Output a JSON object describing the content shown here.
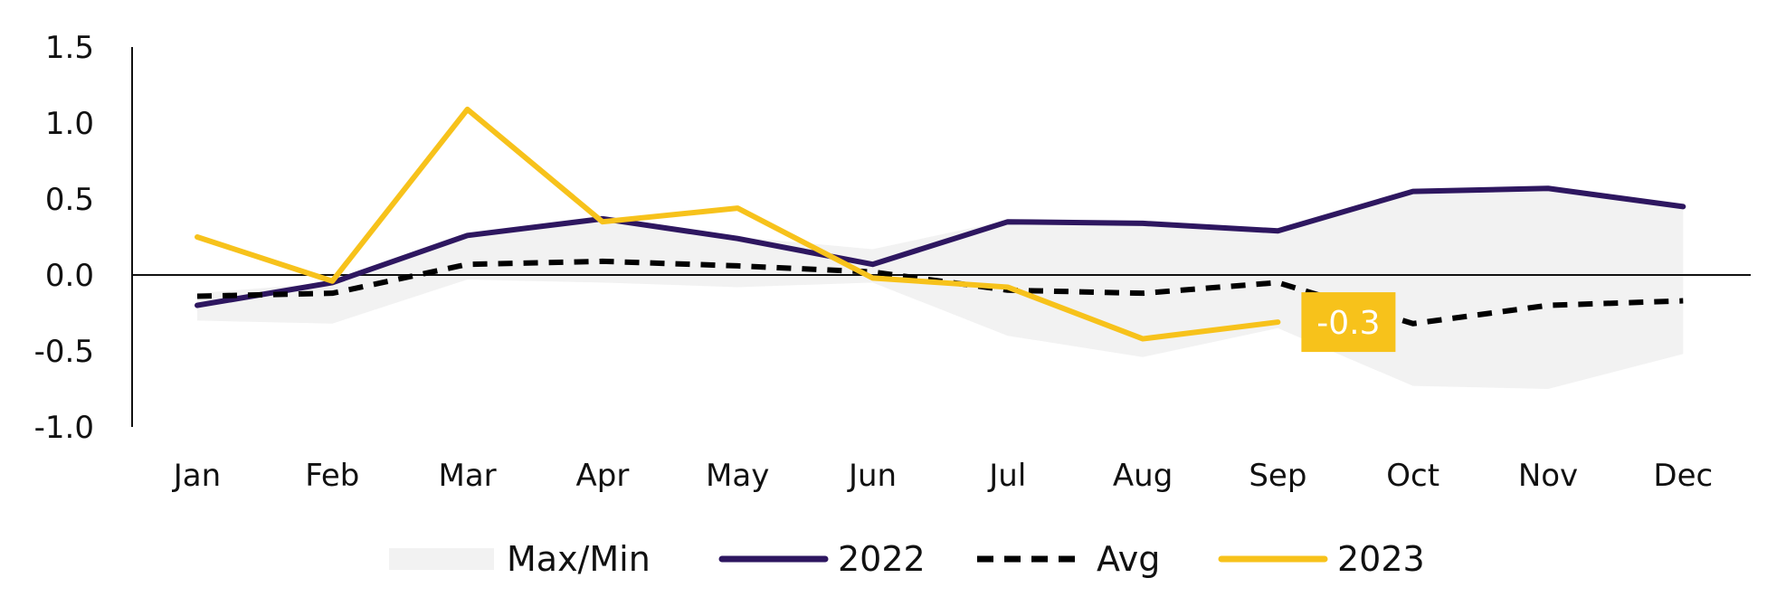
{
  "chart_data": {
    "type": "line",
    "title": "",
    "xlabel": "",
    "ylabel": "",
    "categories": [
      "Jan",
      "Feb",
      "Mar",
      "Apr",
      "May",
      "Jun",
      "Jul",
      "Aug",
      "Sep",
      "Oct",
      "Nov",
      "Dec"
    ],
    "ylim": [
      -1.0,
      1.5
    ],
    "yticks": [
      1.5,
      1.0,
      0.5,
      0.0,
      -0.5,
      -1.0
    ],
    "ytick_labels": [
      "1.5",
      "1.0",
      "0.5",
      "0.0",
      "-0.5",
      "-1.0"
    ],
    "grid": false,
    "legend": "bottom",
    "band": {
      "name": "Max/Min",
      "color": "#f2f2f2",
      "max": [
        -0.12,
        -0.05,
        0.27,
        0.38,
        0.25,
        0.17,
        0.36,
        0.34,
        0.3,
        0.56,
        0.57,
        0.46
      ],
      "min": [
        -0.3,
        -0.32,
        -0.03,
        -0.05,
        -0.08,
        -0.05,
        -0.4,
        -0.54,
        -0.35,
        -0.73,
        -0.75,
        -0.52
      ]
    },
    "series": [
      {
        "name": "2022",
        "color": "#2e1760",
        "style": "solid",
        "values": [
          -0.2,
          -0.05,
          0.26,
          0.37,
          0.24,
          0.07,
          0.35,
          0.34,
          0.29,
          0.55,
          0.57,
          0.45
        ]
      },
      {
        "name": "Avg",
        "color": "#000000",
        "style": "dashed",
        "values": [
          -0.14,
          -0.12,
          0.07,
          0.09,
          0.06,
          0.02,
          -0.1,
          -0.12,
          -0.05,
          -0.32,
          -0.2,
          -0.17
        ]
      },
      {
        "name": "2023",
        "color": "#f7c21b",
        "style": "solid",
        "values": [
          0.25,
          -0.04,
          1.09,
          0.35,
          0.44,
          -0.02,
          -0.08,
          -0.42,
          -0.31,
          null,
          null,
          null
        ]
      }
    ],
    "callout": {
      "label": "-0.3",
      "series": "2023",
      "category": "Sep",
      "color": "#f7c21b"
    }
  }
}
